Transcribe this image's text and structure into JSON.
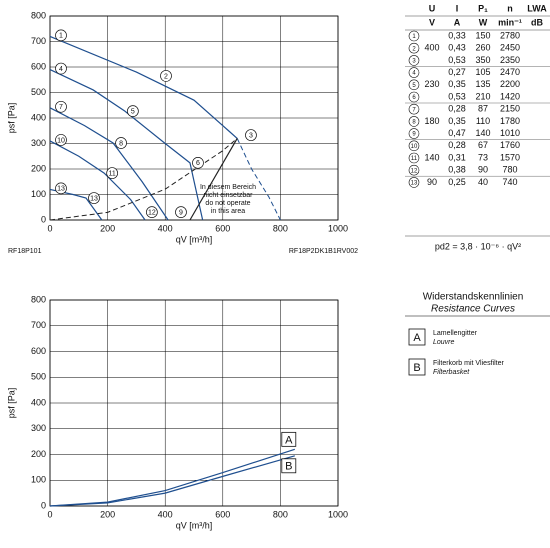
{
  "chart_data": [
    {
      "type": "line",
      "xlabel": "qV [m³/h]",
      "ylabel": "psf [Pa]",
      "xlim": [
        0,
        1000
      ],
      "ylim": [
        0,
        800
      ],
      "xticks": [
        0,
        200,
        400,
        600,
        800,
        1000
      ],
      "yticks": [
        0,
        100,
        200,
        300,
        400,
        500,
        600,
        700,
        800
      ],
      "grid": true,
      "label_shape": "circle",
      "series": [
        {
          "name": "1",
          "color": "#1f4f8f",
          "x": [
            0,
            300,
            500,
            620,
            650
          ],
          "values": [
            720,
            580,
            470,
            350,
            320
          ]
        },
        {
          "color": "#1f4f8f",
          "dashed": true,
          "x": [
            650,
            700,
            760,
            800
          ],
          "values": [
            320,
            200,
            90,
            0
          ]
        },
        {
          "name": "4",
          "color": "#1f4f8f",
          "x": [
            0,
            150,
            260,
            400,
            486,
            530
          ],
          "values": [
            590,
            510,
            427,
            300,
            224,
            0
          ]
        },
        {
          "name": "7",
          "color": "#1f4f8f",
          "x": [
            0,
            120,
            219,
            320,
            410
          ],
          "values": [
            440,
            370,
            302,
            150,
            0
          ]
        },
        {
          "name": "10",
          "color": "#1f4f8f",
          "x": [
            0,
            100,
            188,
            280,
            330
          ],
          "values": [
            310,
            250,
            184,
            80,
            0
          ]
        },
        {
          "name": "13",
          "color": "#1f4f8f",
          "x": [
            0,
            80,
            125,
            180
          ],
          "values": [
            120,
            100,
            86,
            0
          ]
        },
        {
          "color": "#222222",
          "dashed": true,
          "x": [
            0,
            200,
            400,
            600,
            650
          ],
          "values": [
            0,
            30,
            121,
            272,
            320
          ]
        },
        {
          "color": "#222222",
          "x": [
            650,
            486
          ],
          "values": [
            320,
            0
          ]
        }
      ],
      "annotations": [
        {
          "text": "2",
          "x": 375,
          "y": 565
        },
        {
          "text": "3",
          "x": 670,
          "y": 333
        },
        {
          "text": "5",
          "x": 260,
          "y": 427
        },
        {
          "text": "6",
          "x": 486,
          "y": 224
        },
        {
          "text": "8",
          "x": 219,
          "y": 302
        },
        {
          "text": "9",
          "x": 427,
          "y": 31
        },
        {
          "text": "11",
          "x": 188,
          "y": 184
        },
        {
          "text": "12",
          "x": 326,
          "y": 31
        },
        {
          "text": "13",
          "x": 125,
          "y": 86
        }
      ],
      "note": [
        "In diesem Bereich",
        "nicht einsetzbar",
        "do not operate",
        "in this area"
      ],
      "footer_left": "RF18P101",
      "footer_right": "RF18P2DK1B1RV002"
    },
    {
      "type": "line",
      "xlabel": "qV [m³/h]",
      "ylabel": "psf [Pa]",
      "xlim": [
        0,
        1000
      ],
      "ylim": [
        0,
        800
      ],
      "xticks": [
        0,
        200,
        400,
        600,
        800,
        1000
      ],
      "yticks": [
        0,
        100,
        200,
        300,
        400,
        500,
        600,
        700,
        800
      ],
      "grid": true,
      "label_shape": "box",
      "series": [
        {
          "name": "A",
          "color": "#1f4f8f",
          "x": [
            0,
            200,
            400,
            600,
            850
          ],
          "values": [
            0,
            15,
            60,
            130,
            220
          ]
        },
        {
          "name": "B",
          "color": "#1f4f8f",
          "x": [
            0,
            200,
            400,
            600,
            850
          ],
          "values": [
            0,
            12,
            50,
            115,
            195
          ]
        }
      ]
    }
  ],
  "table": {
    "header": [
      "U",
      "I",
      "P₁",
      "n",
      "LWA"
    ],
    "units": [
      "V",
      "A",
      "W",
      "min⁻¹",
      "dB"
    ],
    "rows": [
      [
        "1",
        null,
        "0,33",
        "150",
        "2780"
      ],
      [
        "2",
        "400",
        "0,43",
        "260",
        "2450"
      ],
      [
        "3",
        null,
        "0,53",
        "350",
        "2350"
      ],
      [
        "4",
        null,
        "0,27",
        "105",
        "2470"
      ],
      [
        "5",
        "230",
        "0,35",
        "135",
        "2200"
      ],
      [
        "6",
        null,
        "0,53",
        "210",
        "1420"
      ],
      [
        "7",
        null,
        "0,28",
        "87",
        "2150"
      ],
      [
        "8",
        "180",
        "0,35",
        "110",
        "1780"
      ],
      [
        "9",
        null,
        "0,47",
        "140",
        "1010"
      ],
      [
        "10",
        null,
        "0,28",
        "67",
        "1760"
      ],
      [
        "11",
        "140",
        "0,31",
        "73",
        "1570"
      ],
      [
        "12",
        null,
        "0,38",
        "90",
        "780"
      ],
      [
        "13",
        "90",
        "0,25",
        "40",
        "740"
      ]
    ],
    "formula": "pd2 = 3,8 · 10⁻⁶ · qV²"
  },
  "resistance_legend": {
    "title": "Widerstandskennlinien",
    "subtitle": "Resistance Curves",
    "items": [
      {
        "key": "A",
        "label": "Lamellengitter",
        "label_en": "Louvre"
      },
      {
        "key": "B",
        "label": "Filterkorb mit Vliesfilter",
        "label_en": "Filterbasket"
      }
    ]
  }
}
